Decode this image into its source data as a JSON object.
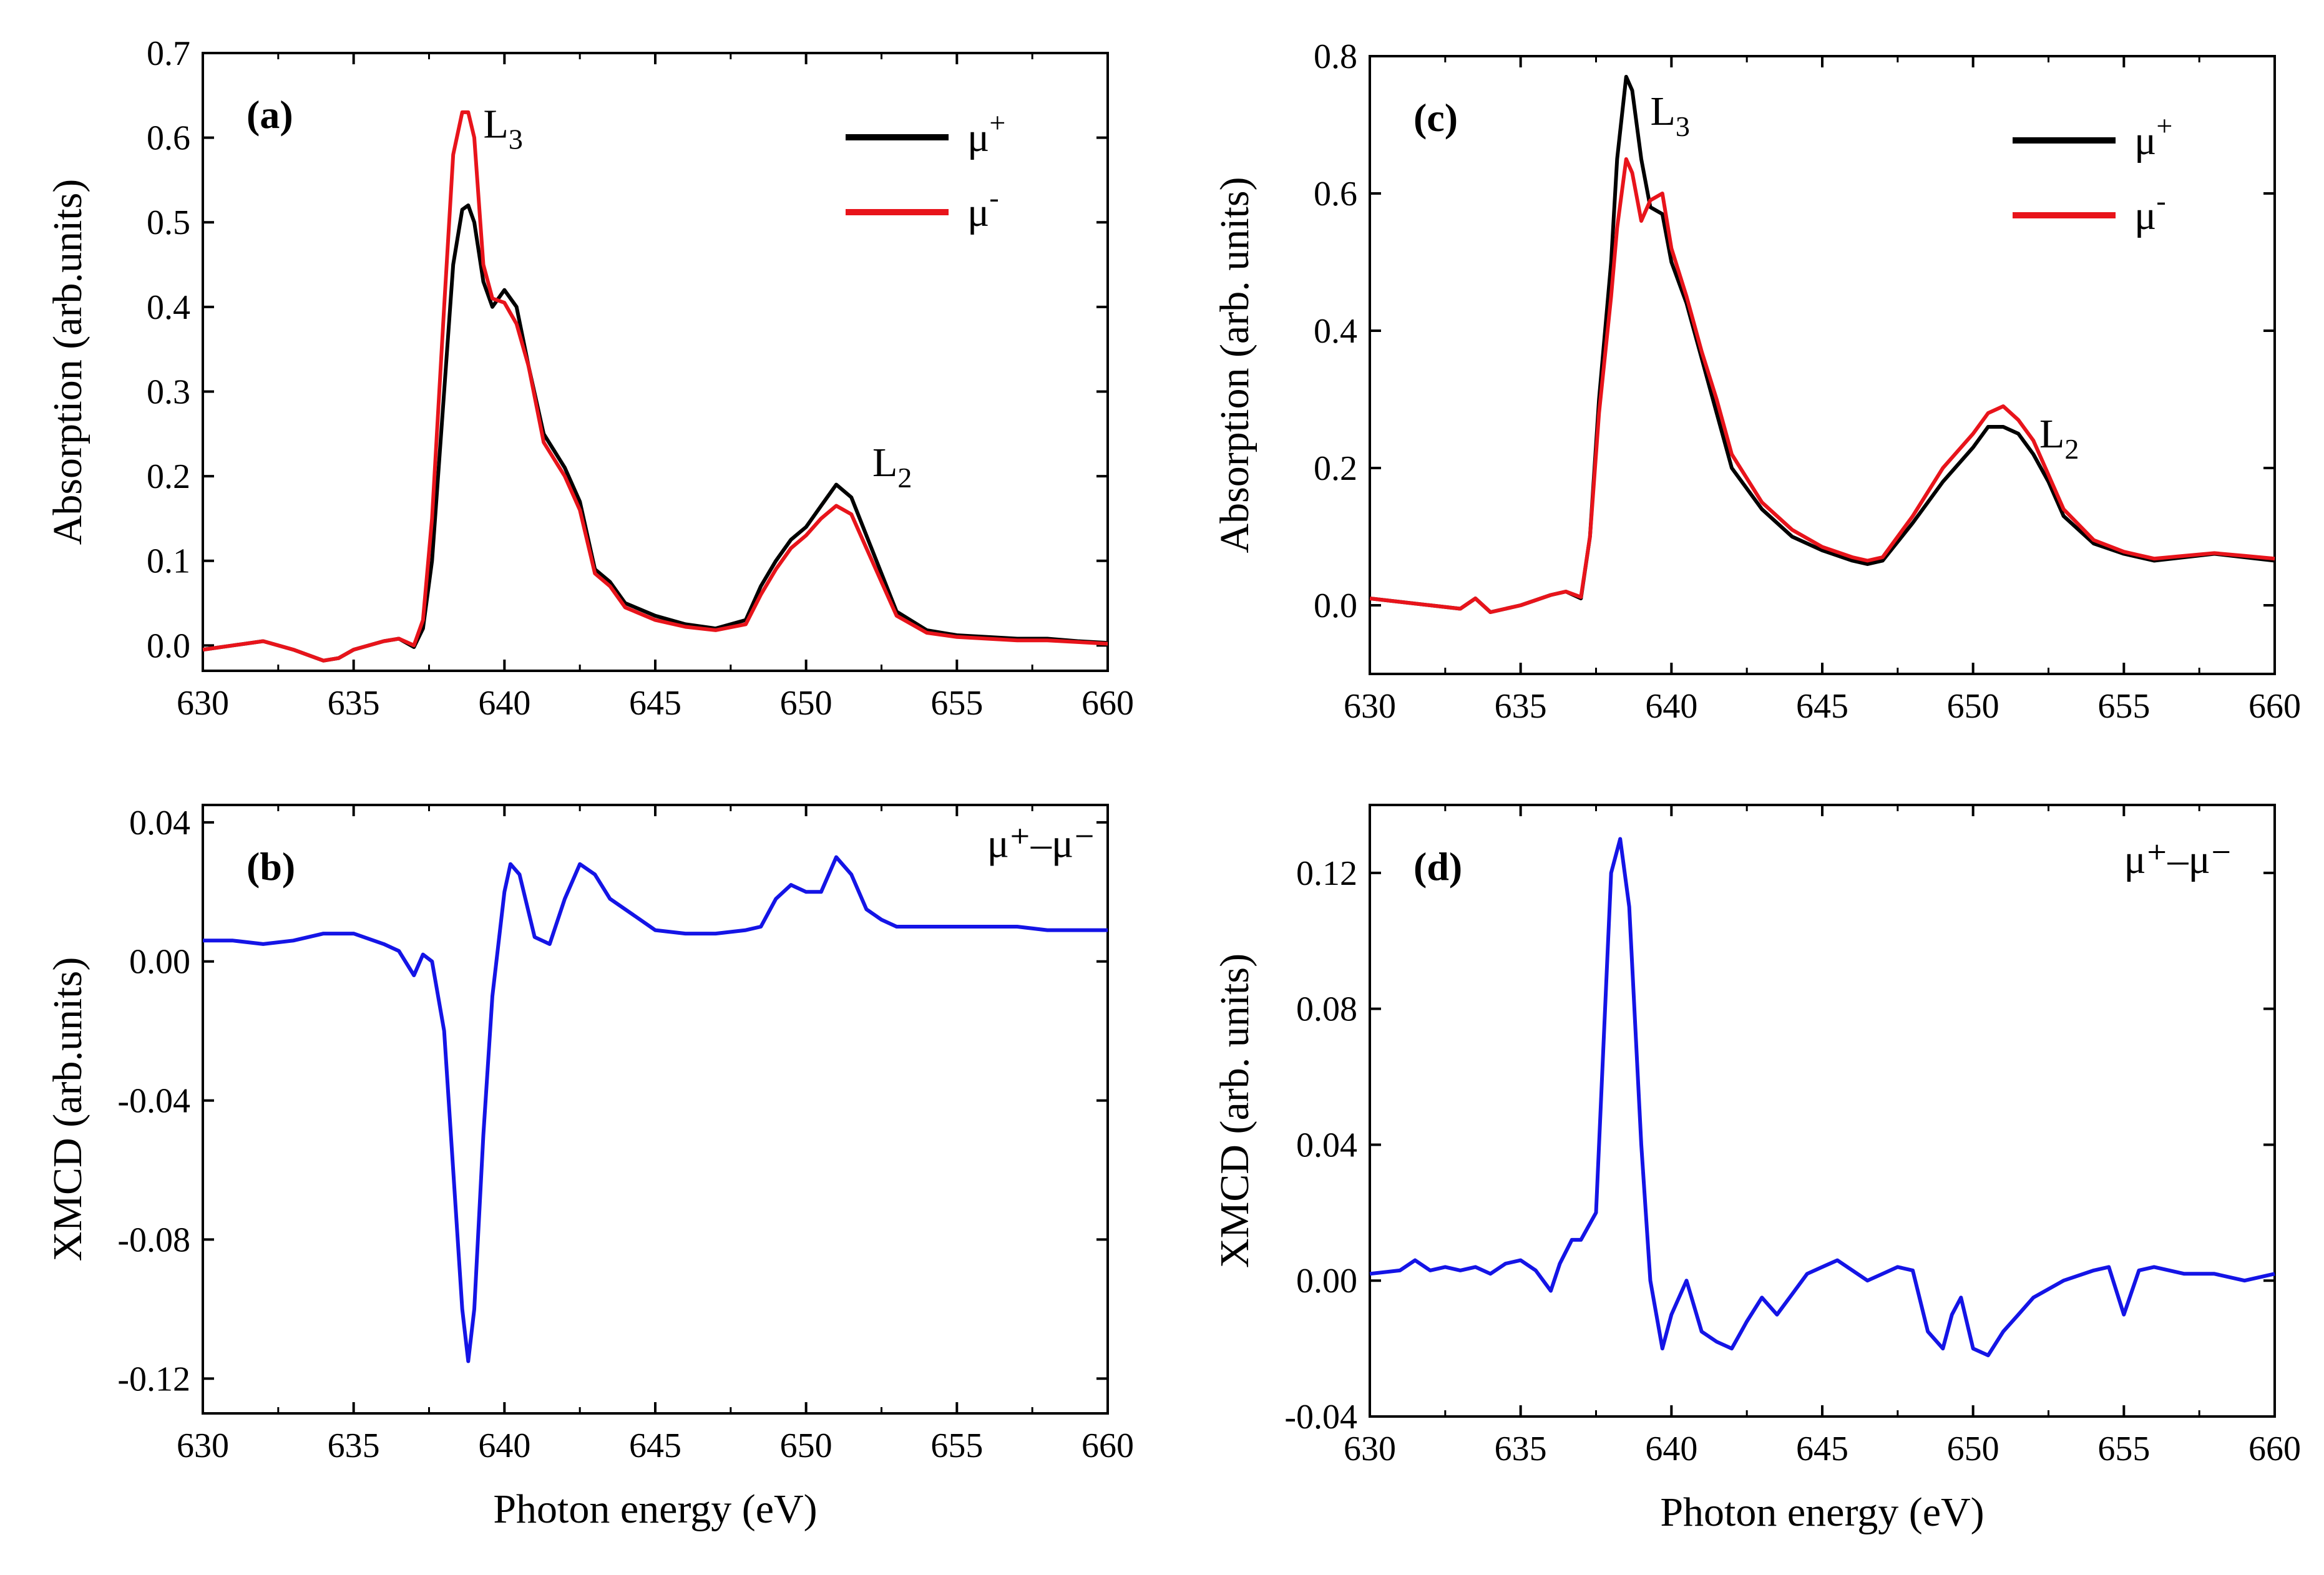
{
  "chart_data": [
    {
      "panel": "(a)",
      "type": "line",
      "ylabel": "Absorption (arb.units)",
      "xlabel": "",
      "xlim": [
        630,
        660
      ],
      "ylim": [
        -0.03,
        0.7
      ],
      "xticks": [
        "630",
        "635",
        "640",
        "645",
        "650",
        "655",
        "660"
      ],
      "yticks": [
        "0.0",
        "0.1",
        "0.2",
        "0.3",
        "0.4",
        "0.5",
        "0.6",
        "0.7"
      ],
      "legend": {
        "position": "top-right",
        "entries": [
          {
            "name": "μ",
            "sup": "+",
            "color": "#000000"
          },
          {
            "name": "μ",
            "sup": "-",
            "color": "#e8141b"
          }
        ]
      },
      "annotations": [
        {
          "text": "L",
          "sub": "3",
          "x": 639.3,
          "y": 0.6
        },
        {
          "text": "L",
          "sub": "2",
          "x": 652.2,
          "y": 0.2
        }
      ],
      "series": [
        {
          "name": "μ+",
          "color": "#000000",
          "x": [
            630,
            631,
            632,
            633,
            634,
            634.5,
            635,
            636,
            636.5,
            637,
            637.3,
            637.6,
            638,
            638.3,
            638.6,
            638.8,
            639,
            639.3,
            639.6,
            640,
            640.4,
            640.8,
            641.3,
            642,
            642.5,
            643,
            643.5,
            644,
            645,
            646,
            647,
            648,
            648.5,
            649,
            649.5,
            650,
            650.5,
            651,
            651.5,
            652,
            652.5,
            653,
            654,
            655,
            656,
            657,
            658,
            659,
            660
          ],
          "values": [
            -0.005,
            0.0,
            0.005,
            -0.005,
            -0.018,
            -0.015,
            -0.005,
            0.005,
            0.008,
            -0.002,
            0.02,
            0.1,
            0.3,
            0.45,
            0.515,
            0.52,
            0.5,
            0.43,
            0.4,
            0.42,
            0.4,
            0.33,
            0.25,
            0.21,
            0.17,
            0.09,
            0.075,
            0.05,
            0.035,
            0.025,
            0.02,
            0.03,
            0.07,
            0.1,
            0.125,
            0.14,
            0.165,
            0.19,
            0.175,
            0.13,
            0.085,
            0.04,
            0.018,
            0.012,
            0.01,
            0.008,
            0.008,
            0.005,
            0.003
          ]
        },
        {
          "name": "μ-",
          "color": "#e8141b",
          "x": [
            630,
            631,
            632,
            633,
            634,
            634.5,
            635,
            636,
            636.5,
            637,
            637.3,
            637.6,
            638,
            638.3,
            638.6,
            638.8,
            639,
            639.3,
            639.6,
            640,
            640.4,
            640.8,
            641.3,
            642,
            642.5,
            643,
            643.5,
            644,
            645,
            646,
            647,
            648,
            648.5,
            649,
            649.5,
            650,
            650.5,
            651,
            651.5,
            652,
            652.5,
            653,
            654,
            655,
            656,
            657,
            658,
            659,
            660
          ],
          "values": [
            -0.005,
            0.0,
            0.005,
            -0.005,
            -0.018,
            -0.015,
            -0.005,
            0.005,
            0.008,
            0.0,
            0.03,
            0.15,
            0.4,
            0.58,
            0.63,
            0.63,
            0.6,
            0.45,
            0.41,
            0.405,
            0.38,
            0.33,
            0.24,
            0.2,
            0.16,
            0.085,
            0.07,
            0.045,
            0.03,
            0.022,
            0.018,
            0.025,
            0.06,
            0.09,
            0.115,
            0.13,
            0.15,
            0.165,
            0.155,
            0.115,
            0.075,
            0.035,
            0.015,
            0.01,
            0.008,
            0.006,
            0.006,
            0.004,
            0.002
          ]
        }
      ]
    },
    {
      "panel": "(b)",
      "type": "line",
      "ylabel": "XMCD (arb.units)",
      "xlabel": "Photon energy (eV)",
      "xlim": [
        630,
        660
      ],
      "ylim": [
        -0.13,
        0.045
      ],
      "xticks": [
        "630",
        "635",
        "640",
        "645",
        "650",
        "655",
        "660"
      ],
      "yticks": [
        "0.04",
        "0.00",
        "-0.04",
        "-0.08",
        "-0.12"
      ],
      "annotations": [
        {
          "text": "μ⁺–μ⁻",
          "x": 656,
          "y": 0.03
        }
      ],
      "series": [
        {
          "name": "μ+–μ-",
          "color": "#1414e6",
          "x": [
            630,
            631,
            632,
            633,
            634,
            635,
            636,
            636.5,
            637,
            637.3,
            637.6,
            638,
            638.3,
            638.6,
            638.8,
            639,
            639.3,
            639.6,
            640,
            640.2,
            640.5,
            641,
            641.5,
            642,
            642.5,
            643,
            643.5,
            644,
            645,
            646,
            647,
            648,
            648.5,
            649,
            649.5,
            650,
            650.5,
            651,
            651.5,
            652,
            652.5,
            653,
            654,
            655,
            656,
            657,
            658,
            659,
            660
          ],
          "values": [
            0.006,
            0.006,
            0.005,
            0.006,
            0.008,
            0.008,
            0.005,
            0.003,
            -0.004,
            0.002,
            0.0,
            -0.02,
            -0.06,
            -0.1,
            -0.115,
            -0.1,
            -0.05,
            -0.01,
            0.02,
            0.028,
            0.025,
            0.007,
            0.005,
            0.018,
            0.028,
            0.025,
            0.018,
            0.015,
            0.009,
            0.008,
            0.008,
            0.009,
            0.01,
            0.018,
            0.022,
            0.02,
            0.02,
            0.03,
            0.025,
            0.015,
            0.012,
            0.01,
            0.01,
            0.01,
            0.01,
            0.01,
            0.009,
            0.009,
            0.009
          ]
        }
      ]
    },
    {
      "panel": "(c)",
      "type": "line",
      "ylabel": "Absorption (arb. units)",
      "xlabel": "",
      "xlim": [
        630,
        660
      ],
      "ylim": [
        -0.1,
        0.8
      ],
      "xticks": [
        "630",
        "635",
        "640",
        "645",
        "650",
        "655",
        "660"
      ],
      "yticks": [
        "0.0",
        "0.2",
        "0.4",
        "0.6",
        "0.8"
      ],
      "legend": {
        "position": "top-right",
        "entries": [
          {
            "name": "μ",
            "sup": "+",
            "color": "#000000"
          },
          {
            "name": "μ",
            "sup": "-",
            "color": "#e8141b"
          }
        ]
      },
      "annotations": [
        {
          "text": "L",
          "sub": "3",
          "x": 639.3,
          "y": 0.7
        },
        {
          "text": "L",
          "sub": "2",
          "x": 652.2,
          "y": 0.23
        }
      ],
      "series": [
        {
          "name": "μ+",
          "color": "#000000",
          "x": [
            630,
            631,
            632,
            633,
            633.5,
            634,
            635,
            636,
            636.5,
            637,
            637.3,
            637.6,
            638,
            638.2,
            638.5,
            638.7,
            639,
            639.3,
            639.7,
            640,
            640.5,
            641,
            641.5,
            642,
            643,
            644,
            645,
            646,
            646.5,
            647,
            648,
            649,
            650,
            650.5,
            651,
            651.5,
            652,
            652.5,
            653,
            654,
            655,
            656,
            657,
            658,
            659,
            660
          ],
          "values": [
            0.01,
            0.005,
            0.0,
            -0.005,
            0.01,
            -0.01,
            0.0,
            0.015,
            0.02,
            0.01,
            0.1,
            0.3,
            0.5,
            0.65,
            0.77,
            0.75,
            0.65,
            0.58,
            0.57,
            0.5,
            0.44,
            0.36,
            0.28,
            0.2,
            0.14,
            0.1,
            0.08,
            0.065,
            0.06,
            0.065,
            0.12,
            0.18,
            0.23,
            0.26,
            0.26,
            0.25,
            0.22,
            0.18,
            0.13,
            0.09,
            0.075,
            0.065,
            0.07,
            0.075,
            0.07,
            0.065
          ]
        },
        {
          "name": "μ-",
          "color": "#e8141b",
          "x": [
            630,
            631,
            632,
            633,
            633.5,
            634,
            635,
            636,
            636.5,
            637,
            637.3,
            637.6,
            638,
            638.2,
            638.5,
            638.7,
            639,
            639.3,
            639.7,
            640,
            640.5,
            641,
            641.5,
            642,
            643,
            644,
            645,
            646,
            646.5,
            647,
            648,
            649,
            650,
            650.5,
            651,
            651.5,
            652,
            652.5,
            653,
            654,
            655,
            656,
            657,
            658,
            659,
            660
          ],
          "values": [
            0.01,
            0.005,
            0.0,
            -0.005,
            0.01,
            -0.01,
            0.0,
            0.015,
            0.02,
            0.012,
            0.1,
            0.28,
            0.45,
            0.55,
            0.65,
            0.63,
            0.56,
            0.59,
            0.6,
            0.52,
            0.45,
            0.37,
            0.3,
            0.22,
            0.15,
            0.11,
            0.085,
            0.07,
            0.065,
            0.07,
            0.13,
            0.2,
            0.25,
            0.28,
            0.29,
            0.27,
            0.24,
            0.19,
            0.14,
            0.095,
            0.078,
            0.068,
            0.072,
            0.076,
            0.072,
            0.068
          ]
        }
      ]
    },
    {
      "panel": "(d)",
      "type": "line",
      "ylabel": "XMCD (arb. units)",
      "xlabel": "Photon energy (eV)",
      "xlim": [
        630,
        660
      ],
      "ylim": [
        -0.04,
        0.14
      ],
      "xticks": [
        "630",
        "635",
        "640",
        "645",
        "650",
        "655",
        "660"
      ],
      "yticks": [
        "0.12",
        "0.08",
        "0.04",
        "0.00",
        "-0.04"
      ],
      "annotations": [
        {
          "text": "μ⁺–μ⁻",
          "x": 655,
          "y": 0.12
        }
      ],
      "series": [
        {
          "name": "μ+–μ-",
          "color": "#1414e6",
          "x": [
            630,
            631,
            631.5,
            632,
            632.5,
            633,
            633.5,
            634,
            634.5,
            635,
            635.5,
            636,
            636.3,
            636.7,
            637,
            637.5,
            637.8,
            638,
            638.3,
            638.6,
            639,
            639.3,
            639.7,
            640,
            640.5,
            641,
            641.5,
            642,
            642.5,
            643,
            643.5,
            644,
            644.5,
            645,
            645.5,
            646,
            646.5,
            647,
            647.5,
            648,
            648.5,
            649,
            649.3,
            649.6,
            650,
            650.5,
            651,
            651.5,
            652,
            653,
            654,
            654.5,
            655,
            655.5,
            656,
            657,
            658,
            659,
            660
          ],
          "values": [
            0.002,
            0.003,
            0.006,
            0.003,
            0.004,
            0.003,
            0.004,
            0.002,
            0.005,
            0.006,
            0.003,
            -0.003,
            0.005,
            0.012,
            0.012,
            0.02,
            0.08,
            0.12,
            0.13,
            0.11,
            0.04,
            0.0,
            -0.02,
            -0.01,
            0.0,
            -0.015,
            -0.018,
            -0.02,
            -0.012,
            -0.005,
            -0.01,
            -0.004,
            0.002,
            0.004,
            0.006,
            0.003,
            0.0,
            0.002,
            0.004,
            0.003,
            -0.015,
            -0.02,
            -0.01,
            -0.005,
            -0.02,
            -0.022,
            -0.015,
            -0.01,
            -0.005,
            0.0,
            0.003,
            0.004,
            -0.01,
            0.003,
            0.004,
            0.002,
            0.002,
            0.0,
            0.002
          ]
        }
      ]
    }
  ]
}
